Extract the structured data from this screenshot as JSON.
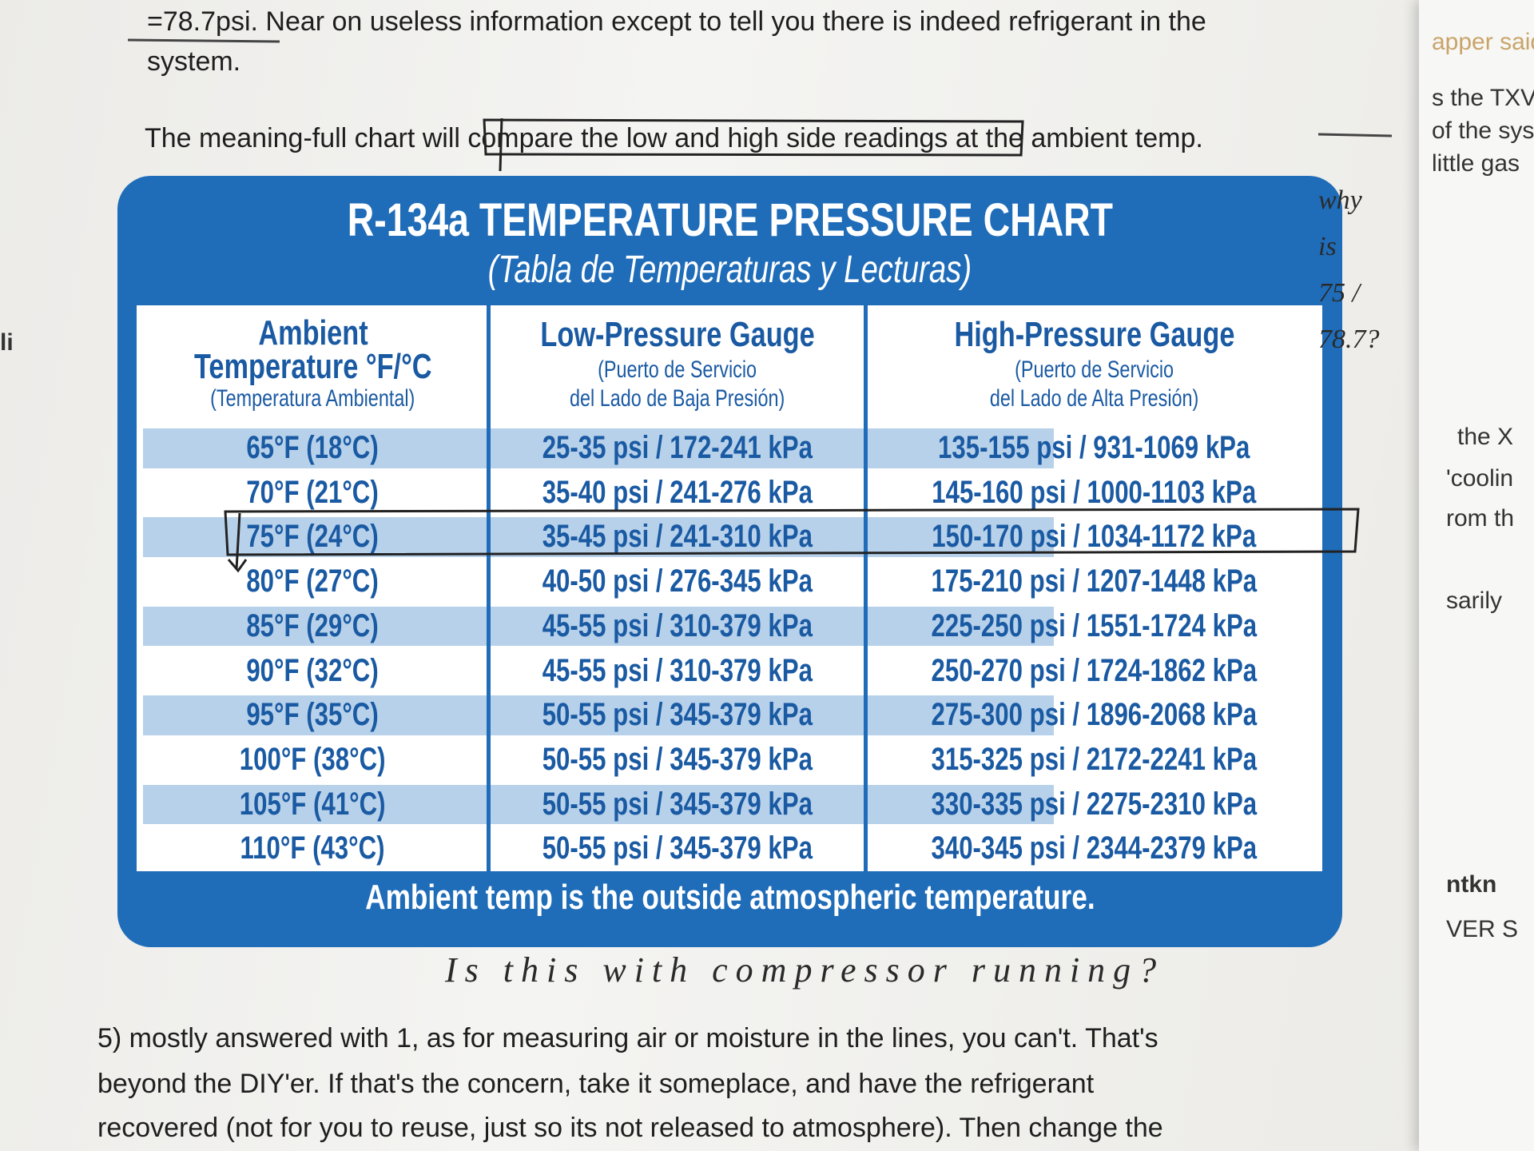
{
  "page_text": {
    "top_lines": [
      "=78.7psi. Near on useless information except to tell you there is indeed refrigerant in the",
      "system.",
      "The meaning-full chart will compare the low and high side readings at the ambient temp."
    ],
    "bottom_lines": [
      "5) mostly answered with 1, as for measuring air or moisture in the lines, you can't. That's",
      "beyond the DIY'er. If that's the concern, take it someplace, and have the refrigerant",
      "recovered (not for you to reuse, just so its not released to atmosphere). Then change the"
    ]
  },
  "chart_card": {
    "title": "R-134a TEMPERATURE PRESSURE CHART",
    "subtitle": "(Tabla de Temperaturas y Lecturas)",
    "headers": [
      [
        "Ambient",
        "Temperature °F/°C",
        "(Temperatura Ambiental)"
      ],
      [
        "Low-Pressure Gauge",
        "(Puerto de Servicio",
        "del Lado de Baja Presión)"
      ],
      [
        "High-Pressure Gauge",
        "(Puerto de Servicio",
        "del Lado de Alta Presión)"
      ]
    ],
    "rows": [
      [
        "65°F (18°C)",
        "25-35 psi / 172-241 kPa",
        "135-155 psi / 931-1069 kPa"
      ],
      [
        "70°F (21°C)",
        "35-40 psi / 241-276 kPa",
        "145-160 psi / 1000-1103 kPa"
      ],
      [
        "75°F (24°C)",
        "35-45 psi / 241-310 kPa",
        "150-170 psi / 1034-1172 kPa"
      ],
      [
        "80°F (27°C)",
        "40-50 psi / 276-345 kPa",
        "175-210 psi / 1207-1448 kPa"
      ],
      [
        "85°F (29°C)",
        "45-55 psi / 310-379 kPa",
        "225-250 psi / 1551-1724 kPa"
      ],
      [
        "90°F (32°C)",
        "45-55 psi / 310-379 kPa",
        "250-270 psi / 1724-1862 kPa"
      ],
      [
        "95°F (35°C)",
        "50-55 psi / 345-379 kPa",
        "275-300 psi / 1896-2068 kPa"
      ],
      [
        "100°F (38°C)",
        "50-55 psi / 345-379 kPa",
        "315-325 psi / 2172-2241 kPa"
      ],
      [
        "105°F (41°C)",
        "50-55 psi / 345-379 kPa",
        "330-335 psi / 2275-2310 kPa"
      ],
      [
        "110°F (43°C)",
        "50-55 psi / 345-379 kPa",
        "340-345 psi / 2344-2379 kPa"
      ]
    ],
    "footer": "Ambient temp is the outside atmospheric temperature."
  },
  "handwritten": {
    "margin_note": [
      "why",
      "is",
      "75 /",
      "78.7?"
    ],
    "below_chart": "Is this with compressor running?"
  },
  "right_page_fragments": [
    "apper said",
    "s the TXV",
    "of the sys",
    "little gas",
    "the X",
    "'coolin",
    "rom th",
    "sarily",
    "ntkn",
    "VER S"
  ],
  "left_page_fragments": [
    "li"
  ]
}
